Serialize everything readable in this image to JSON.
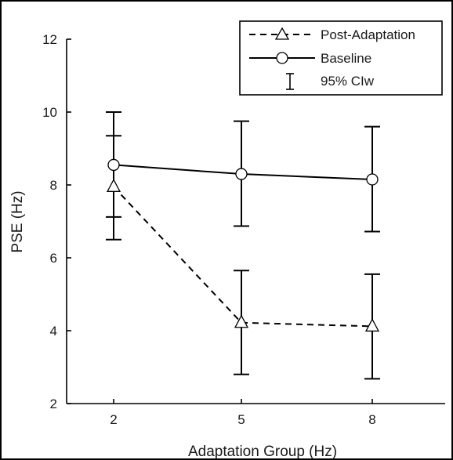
{
  "chart_data": {
    "type": "line",
    "xlabel": "Adaptation Group (Hz)",
    "ylabel": "PSE (Hz)",
    "categories": [
      "2",
      "5",
      "8"
    ],
    "yticks": [
      "2",
      "4",
      "6",
      "8",
      "10",
      "12"
    ],
    "ylim": [
      2,
      12
    ],
    "grid": false,
    "legend_position": "top-right",
    "legend_ci_label": "95% CIw",
    "series": [
      {
        "name": "Post-Adaptation",
        "style": "dashed",
        "marker": "triangle",
        "values": [
          7.95,
          4.22,
          4.12
        ],
        "ci_low": [
          6.5,
          2.8,
          2.68
        ],
        "ci_high": [
          9.35,
          5.65,
          5.55
        ]
      },
      {
        "name": "Baseline",
        "style": "solid",
        "marker": "circle",
        "values": [
          8.55,
          8.3,
          8.15
        ],
        "ci_low": [
          7.12,
          6.87,
          6.72
        ],
        "ci_high": [
          10.0,
          9.75,
          9.6
        ]
      }
    ],
    "colors": {
      "line": "#000000",
      "marker_fill": "#ffffff",
      "frame": "#000000"
    }
  }
}
